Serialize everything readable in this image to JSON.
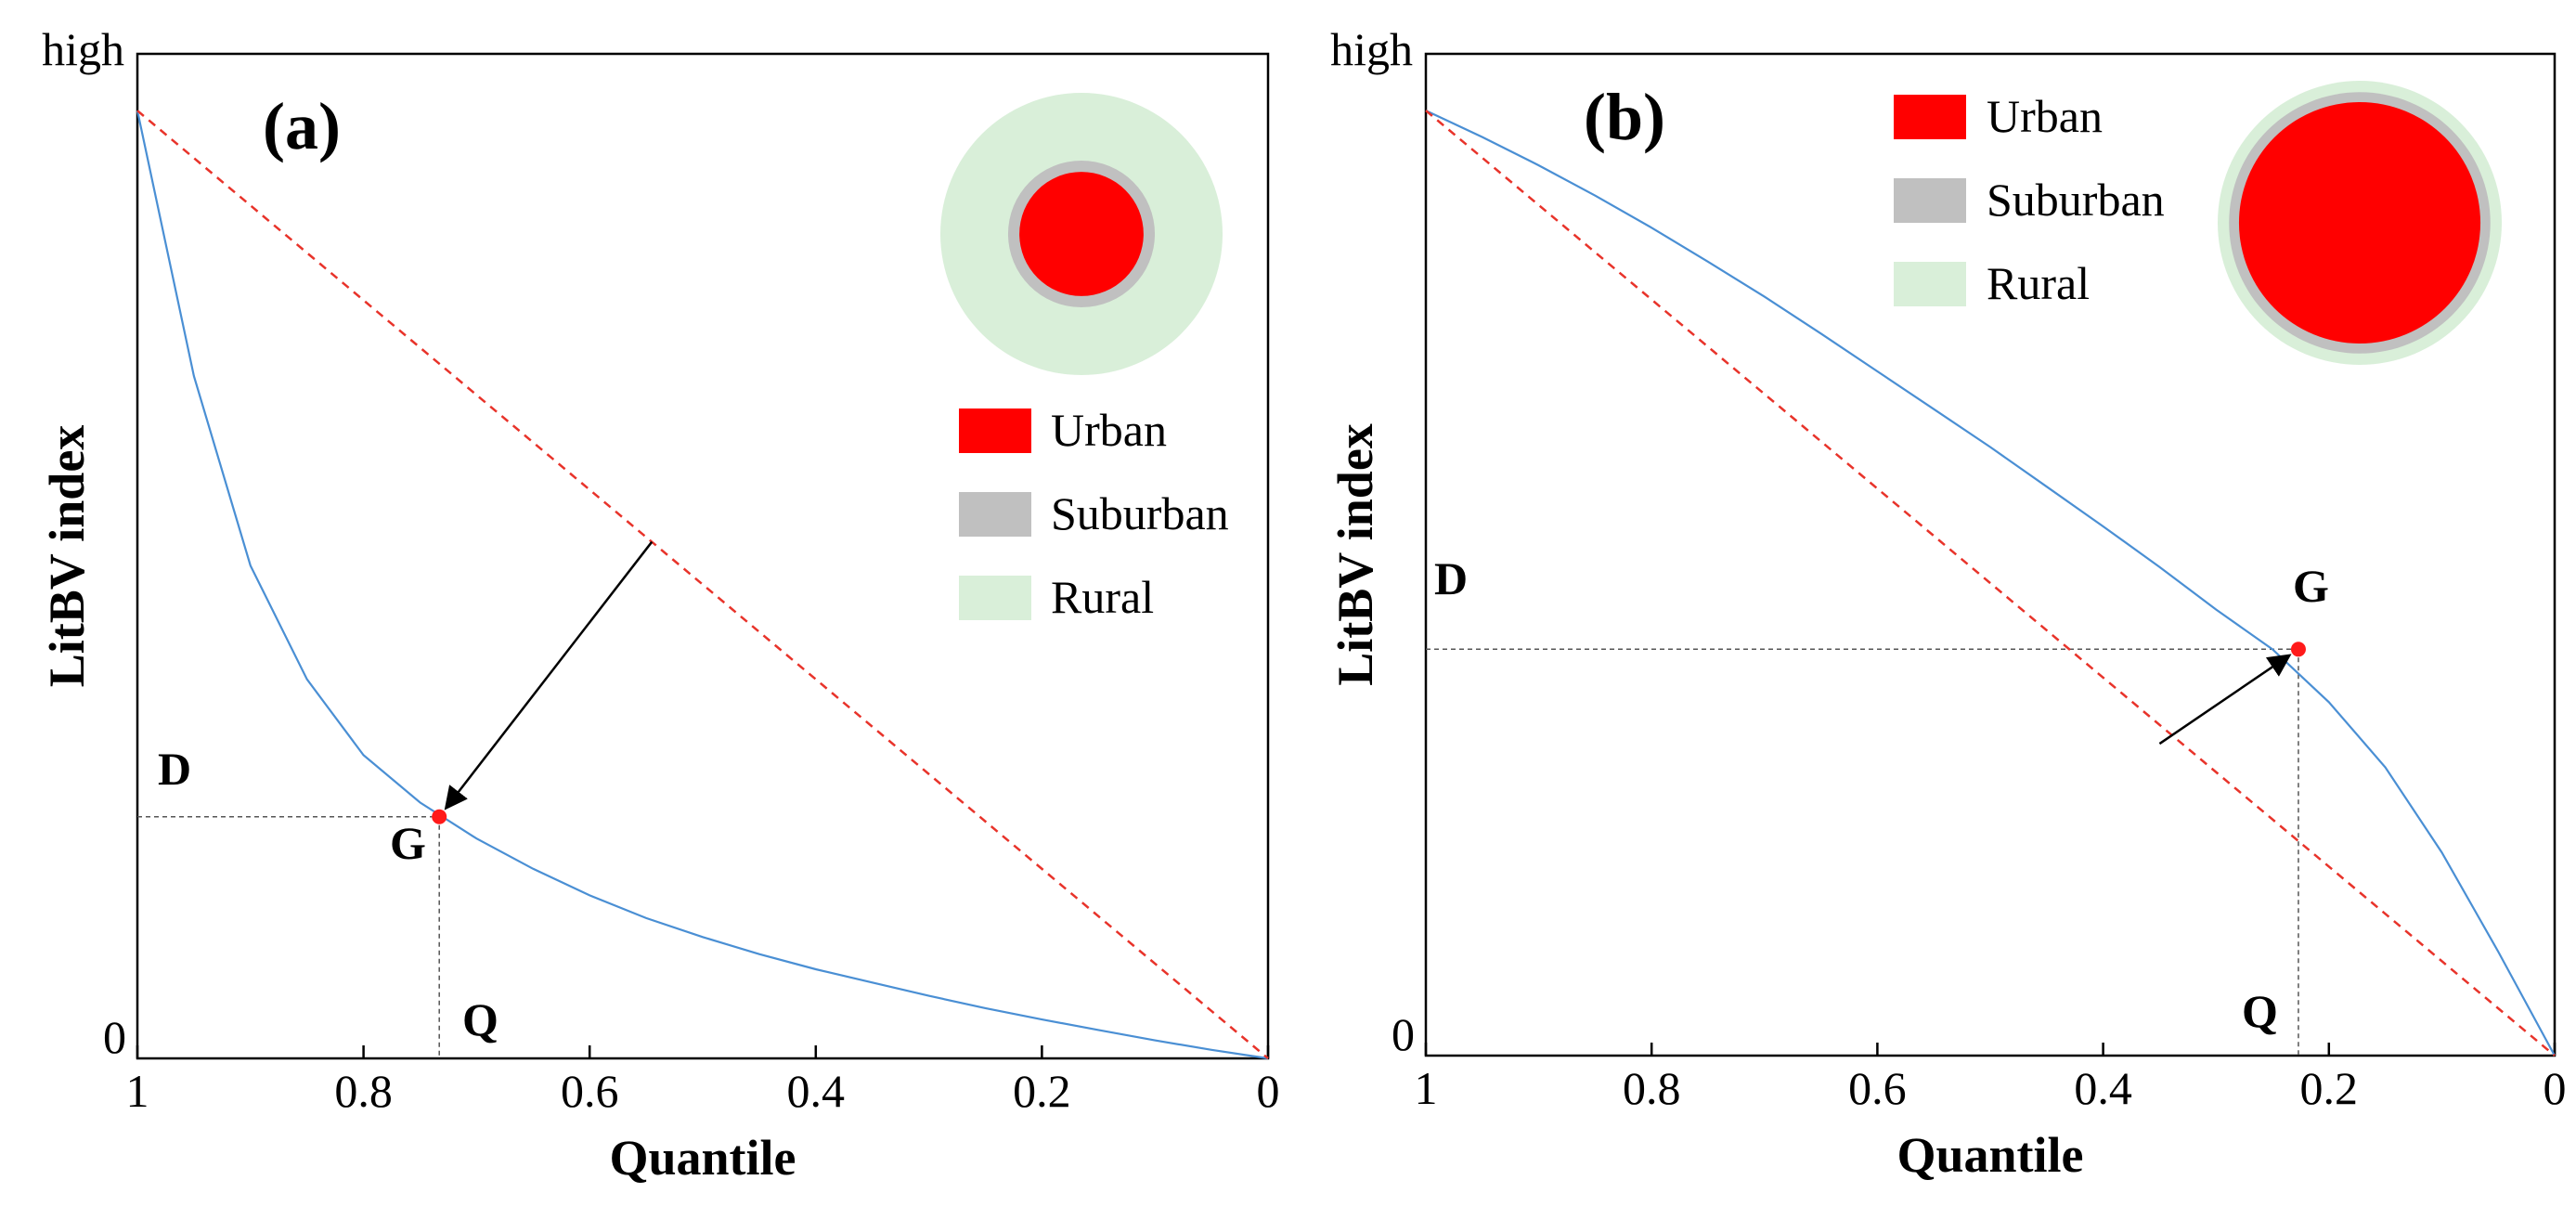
{
  "chart_data": [
    {
      "type": "line",
      "panel_label": "(a)",
      "xlabel": "Quantile",
      "ylabel": "LitBV index",
      "x_ticks": [
        "1",
        "0.8",
        "0.6",
        "0.4",
        "0.2",
        "0"
      ],
      "y_ticks": [
        "high",
        "0"
      ],
      "xlim": [
        1,
        0
      ],
      "ylim": [
        0,
        1.06
      ],
      "series": [
        {
          "name": "Lorenz-type curve (convex)",
          "color": "#4a8fd4",
          "style": "solid",
          "x": [
            1,
            0.95,
            0.9,
            0.85,
            0.8,
            0.75,
            0.7,
            0.65,
            0.6,
            0.55,
            0.5,
            0.45,
            0.4,
            0.35,
            0.3,
            0.25,
            0.2,
            0.15,
            0.1,
            0.05,
            0
          ],
          "y": [
            1.0,
            0.72,
            0.52,
            0.4,
            0.32,
            0.27,
            0.232,
            0.2,
            0.172,
            0.148,
            0.128,
            0.11,
            0.094,
            0.08,
            0.066,
            0.053,
            0.041,
            0.03,
            0.019,
            0.009,
            0
          ]
        },
        {
          "name": "Equality line",
          "color": "#e8332a",
          "style": "dashed",
          "x": [
            1,
            0
          ],
          "y": [
            1,
            0
          ]
        }
      ],
      "point": {
        "name": "G",
        "x": 0.733,
        "y": 0.255
      },
      "reference_labels": {
        "d": "D",
        "q": "Q"
      },
      "arrow": {
        "from": [
          0.545,
          0.545
        ],
        "to": [
          0.733,
          0.255
        ]
      },
      "legend": [
        {
          "label": "Urban",
          "color": "#ff0000"
        },
        {
          "label": "Suburban",
          "color": "#c0c0c0"
        },
        {
          "label": "Rural",
          "color": "#d9efd9"
        }
      ],
      "circle_rings": {
        "rural": 1.0,
        "suburban": 0.52,
        "urban": 0.44
      }
    },
    {
      "type": "line",
      "panel_label": "(b)",
      "xlabel": "Quantile",
      "ylabel": "LitBV index",
      "x_ticks": [
        "1",
        "0.8",
        "0.6",
        "0.4",
        "0.2",
        "0"
      ],
      "y_ticks": [
        "high",
        "0"
      ],
      "xlim": [
        1,
        0
      ],
      "ylim": [
        0,
        1.06
      ],
      "series": [
        {
          "name": "Lorenz-type curve (concave)",
          "color": "#4a8fd4",
          "style": "solid",
          "x": [
            1,
            0.95,
            0.9,
            0.85,
            0.8,
            0.75,
            0.7,
            0.65,
            0.6,
            0.55,
            0.5,
            0.45,
            0.4,
            0.35,
            0.3,
            0.25,
            0.2,
            0.15,
            0.1,
            0.05,
            0
          ],
          "y": [
            1.0,
            0.972,
            0.942,
            0.91,
            0.876,
            0.84,
            0.803,
            0.764,
            0.724,
            0.684,
            0.644,
            0.602,
            0.56,
            0.517,
            0.472,
            0.43,
            0.374,
            0.305,
            0.215,
            0.11,
            0
          ]
        },
        {
          "name": "Equality line",
          "color": "#e8332a",
          "style": "dashed",
          "x": [
            1,
            0
          ],
          "y": [
            1,
            0
          ]
        }
      ],
      "point": {
        "name": "G",
        "x": 0.227,
        "y": 0.43
      },
      "reference_labels": {
        "d": "D",
        "q": "Q"
      },
      "arrow": {
        "from": [
          0.35,
          0.33
        ],
        "to": [
          0.227,
          0.43
        ]
      },
      "legend": [
        {
          "label": "Urban",
          "color": "#ff0000"
        },
        {
          "label": "Suburban",
          "color": "#c0c0c0"
        },
        {
          "label": "Rural",
          "color": "#d9efd9"
        }
      ],
      "circle_rings": {
        "rural": 1.0,
        "suburban": 0.92,
        "urban": 0.85
      }
    }
  ]
}
